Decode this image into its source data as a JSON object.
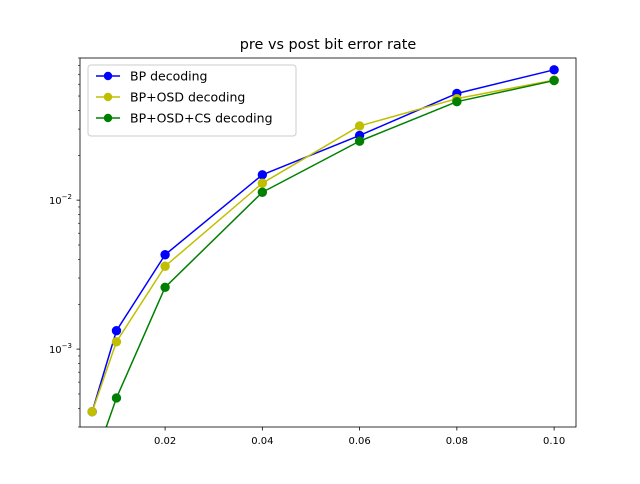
{
  "chart_data": {
    "type": "line",
    "title": "pre vs post bit error rate",
    "xlabel": "",
    "ylabel": "",
    "xscale": "linear",
    "yscale": "log",
    "xlim": [
      0.0025,
      0.1045
    ],
    "ylim": [
      0.0003,
      0.09
    ],
    "x_ticks": [
      0.02,
      0.04,
      0.06,
      0.08,
      0.1
    ],
    "x_tick_labels": [
      "0.02",
      "0.04",
      "0.06",
      "0.08",
      "0.10"
    ],
    "y_ticks": [
      0.001,
      0.01
    ],
    "y_tick_base": "10",
    "y_tick_exponents": [
      "−3",
      "−2"
    ],
    "grid": false,
    "legend_position": "upper left",
    "series": [
      {
        "name": "BP decoding",
        "color": "#0000ff",
        "marker": "circle",
        "x": [
          0.005,
          0.01,
          0.02,
          0.04,
          0.06,
          0.08,
          0.1
        ],
        "y": [
          0.00038,
          0.00133,
          0.0043,
          0.0148,
          0.0272,
          0.052,
          0.075
        ]
      },
      {
        "name": "BP+OSD decoding",
        "color": "#bfbf00",
        "marker": "circle",
        "x": [
          0.005,
          0.01,
          0.02,
          0.04,
          0.06,
          0.08,
          0.1
        ],
        "y": [
          0.00038,
          0.00112,
          0.0036,
          0.013,
          0.0315,
          0.048,
          0.064
        ]
      },
      {
        "name": "BP+OSD+CS decoding",
        "color": "#008000",
        "marker": "circle",
        "x": [
          0.005,
          0.01,
          0.02,
          0.04,
          0.06,
          0.08,
          0.1
        ],
        "y": [
          0,
          0.00047,
          0.0026,
          0.0113,
          0.0249,
          0.0458,
          0.0635
        ]
      }
    ]
  }
}
